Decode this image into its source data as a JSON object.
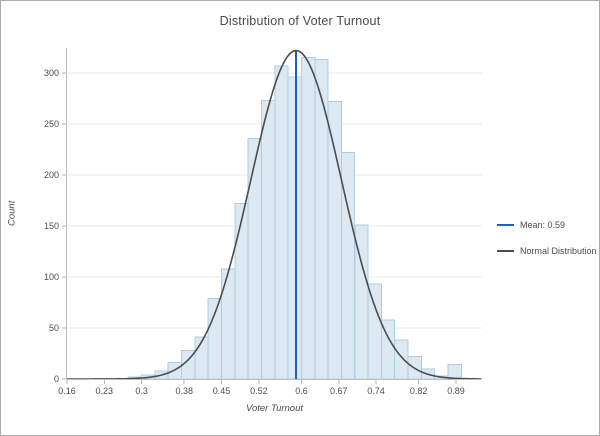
{
  "chart_data": {
    "type": "bar",
    "subtype": "histogram",
    "title": "Distribution of Voter Turnout",
    "xlabel": "Voter Turnout",
    "ylabel": "Count",
    "x_ticks": [
      0.16,
      0.23,
      0.3,
      0.38,
      0.45,
      0.52,
      0.6,
      0.67,
      0.74,
      0.82,
      0.89
    ],
    "x_tick_labels": [
      "0.16",
      "0.23",
      "0.3",
      "0.38",
      "0.45",
      "0.52",
      "0.6",
      "0.67",
      "0.74",
      "0.82",
      "0.89"
    ],
    "y_ticks": [
      0,
      50,
      100,
      150,
      200,
      250,
      300
    ],
    "xlim": [
      0.16,
      0.9388
    ],
    "ylim": [
      0,
      324.5
    ],
    "grid": "horizontal-only",
    "bin_edges": [
      0.275,
      0.3,
      0.325,
      0.35,
      0.375,
      0.4,
      0.425,
      0.45,
      0.475,
      0.5,
      0.525,
      0.55,
      0.575,
      0.6,
      0.625,
      0.65,
      0.675,
      0.7,
      0.725,
      0.75,
      0.775,
      0.8,
      0.825,
      0.85,
      0.875,
      0.9
    ],
    "counts": [
      2,
      4,
      8,
      16,
      28,
      41,
      79,
      108,
      172,
      236,
      273,
      307,
      296,
      315,
      313,
      272,
      222,
      151,
      93,
      58,
      38,
      22,
      10,
      3,
      14
    ],
    "mean_line": {
      "value": 0.59,
      "color": "#1E5FC4"
    },
    "normal_curve": {
      "mean": 0.59,
      "sigma": 0.085,
      "peak": 322,
      "color": "#4D4D4D"
    },
    "colors": {
      "bar_fill": "#DCE9F2",
      "bar_stroke": "#AECDE2",
      "gridline": "#EAEAEA",
      "axis": "#BFBFBF",
      "tick": "#B5B5B5"
    }
  },
  "legend": {
    "items": [
      {
        "label": "Mean: 0.59",
        "color": "#1E5FC4"
      },
      {
        "label": "Normal Distribution",
        "color": "#4D4D4D"
      }
    ],
    "position": "right"
  }
}
